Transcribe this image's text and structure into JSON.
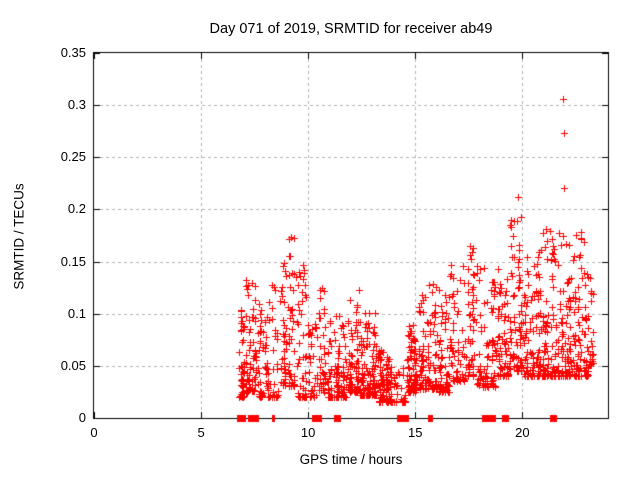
{
  "figure": {
    "title": "Day 071 of 2019, SRMTID for receiver ab49",
    "xlabel": "GPS time / hours",
    "ylabel": "SRMTID / TECUs"
  },
  "chart_data": {
    "type": "scatter",
    "title": "Day 071 of 2019, SRMTID for receiver ab49",
    "xlabel": "GPS time / hours",
    "ylabel": "SRMTID / TECUs",
    "xlim": [
      0,
      24
    ],
    "ylim": [
      0,
      0.35
    ],
    "xticks": [
      0,
      5,
      10,
      15,
      20
    ],
    "xtick_labels": [
      "0",
      "5",
      "10",
      "15",
      "20"
    ],
    "yticks": [
      0,
      0.05,
      0.1,
      0.15,
      0.2,
      0.25,
      0.3,
      0.35
    ],
    "ytick_labels": [
      "0",
      "0.05",
      "0.1",
      "0.15",
      "0.2",
      "0.25",
      "0.3",
      "0.35"
    ],
    "grid": true,
    "grid_style": "dashed",
    "grid_color": "#b4b4b4",
    "marker": "plus",
    "marker_color": "#ff0000",
    "marker_size_px": 7,
    "legend": "none",
    "data_span_hours": [
      6.75,
      23.35
    ],
    "description": "Dense scatter of slant-TEC SRMTID values vs GPS time; no data before ~6.75 h; activity rises toward end of day",
    "outlier_points": [
      [
        19.78,
        0.212
      ],
      [
        21.9,
        0.306
      ],
      [
        21.93,
        0.273
      ],
      [
        21.93,
        0.221
      ],
      [
        9.09,
        0.172
      ],
      [
        10.66,
        0.125
      ],
      [
        17.55,
        0.165
      ],
      [
        22.75,
        0.178
      ]
    ],
    "zero_value_markers": [
      6.8,
      6.93,
      7.35,
      7.5,
      8.34,
      10.3,
      10.48,
      11.34,
      14.28,
      14.52,
      15.64,
      15.74,
      18.25,
      18.6,
      19.18,
      21.45
    ],
    "thin_zero_markers": [
      8.34,
      15.64,
      15.74
    ],
    "clusters": [
      {
        "x0": 6.75,
        "x1": 7.05,
        "n": 45,
        "ymin": 0.02,
        "ymax": 0.105,
        "skew": 1.9
      },
      {
        "x0": 7.05,
        "x1": 7.6,
        "n": 70,
        "ymin": 0.025,
        "ymax": 0.135,
        "skew": 2.0
      },
      {
        "x0": 7.6,
        "x1": 8.25,
        "n": 55,
        "ymin": 0.02,
        "ymax": 0.115,
        "skew": 2.0
      },
      {
        "x0": 8.25,
        "x1": 8.65,
        "n": 25,
        "ymin": 0.02,
        "ymax": 0.135,
        "skew": 1.8
      },
      {
        "x0": 8.65,
        "x1": 9.4,
        "n": 75,
        "ymin": 0.03,
        "ymax": 0.175,
        "skew": 1.5
      },
      {
        "x0": 9.4,
        "x1": 9.95,
        "n": 45,
        "ymin": 0.02,
        "ymax": 0.155,
        "skew": 2.4
      },
      {
        "x0": 9.95,
        "x1": 10.45,
        "n": 35,
        "ymin": 0.02,
        "ymax": 0.095,
        "skew": 2.0
      },
      {
        "x0": 10.45,
        "x1": 10.85,
        "n": 35,
        "ymin": 0.025,
        "ymax": 0.128,
        "skew": 1.8
      },
      {
        "x0": 10.85,
        "x1": 11.8,
        "n": 95,
        "ymin": 0.02,
        "ymax": 0.1,
        "skew": 2.4
      },
      {
        "x0": 11.8,
        "x1": 12.4,
        "n": 75,
        "ymin": 0.025,
        "ymax": 0.126,
        "skew": 2.4
      },
      {
        "x0": 12.4,
        "x1": 13.2,
        "n": 110,
        "ymin": 0.022,
        "ymax": 0.105,
        "skew": 2.6
      },
      {
        "x0": 13.2,
        "x1": 13.95,
        "n": 85,
        "ymin": 0.015,
        "ymax": 0.065,
        "skew": 1.8
      },
      {
        "x0": 13.95,
        "x1": 14.6,
        "n": 30,
        "ymin": 0.015,
        "ymax": 0.05,
        "skew": 1.8
      },
      {
        "x0": 14.6,
        "x1": 15.1,
        "n": 75,
        "ymin": 0.025,
        "ymax": 0.095,
        "skew": 2.2
      },
      {
        "x0": 15.1,
        "x1": 16.05,
        "n": 95,
        "ymin": 0.028,
        "ymax": 0.13,
        "skew": 2.4
      },
      {
        "x0": 16.05,
        "x1": 16.6,
        "n": 65,
        "ymin": 0.025,
        "ymax": 0.125,
        "skew": 2.2
      },
      {
        "x0": 16.6,
        "x1": 17.4,
        "n": 60,
        "ymin": 0.035,
        "ymax": 0.147,
        "skew": 2.2
      },
      {
        "x0": 17.4,
        "x1": 17.8,
        "n": 40,
        "ymin": 0.04,
        "ymax": 0.168,
        "skew": 1.9
      },
      {
        "x0": 17.8,
        "x1": 18.8,
        "n": 85,
        "ymin": 0.03,
        "ymax": 0.148,
        "skew": 2.2
      },
      {
        "x0": 18.8,
        "x1": 19.35,
        "n": 55,
        "ymin": 0.04,
        "ymax": 0.15,
        "skew": 2.0
      },
      {
        "x0": 19.35,
        "x1": 20.0,
        "n": 70,
        "ymin": 0.045,
        "ymax": 0.195,
        "skew": 1.9
      },
      {
        "x0": 20.0,
        "x1": 20.9,
        "n": 95,
        "ymin": 0.04,
        "ymax": 0.178,
        "skew": 2.4
      },
      {
        "x0": 20.9,
        "x1": 21.6,
        "n": 85,
        "ymin": 0.04,
        "ymax": 0.185,
        "skew": 2.3
      },
      {
        "x0": 21.6,
        "x1": 22.3,
        "n": 85,
        "ymin": 0.04,
        "ymax": 0.185,
        "skew": 2.3
      },
      {
        "x0": 22.3,
        "x1": 23.1,
        "n": 85,
        "ymin": 0.04,
        "ymax": 0.178,
        "skew": 2.3
      },
      {
        "x0": 23.1,
        "x1": 23.35,
        "n": 20,
        "ymin": 0.05,
        "ymax": 0.15,
        "skew": 2.0
      }
    ],
    "render_seed": 20190071
  }
}
